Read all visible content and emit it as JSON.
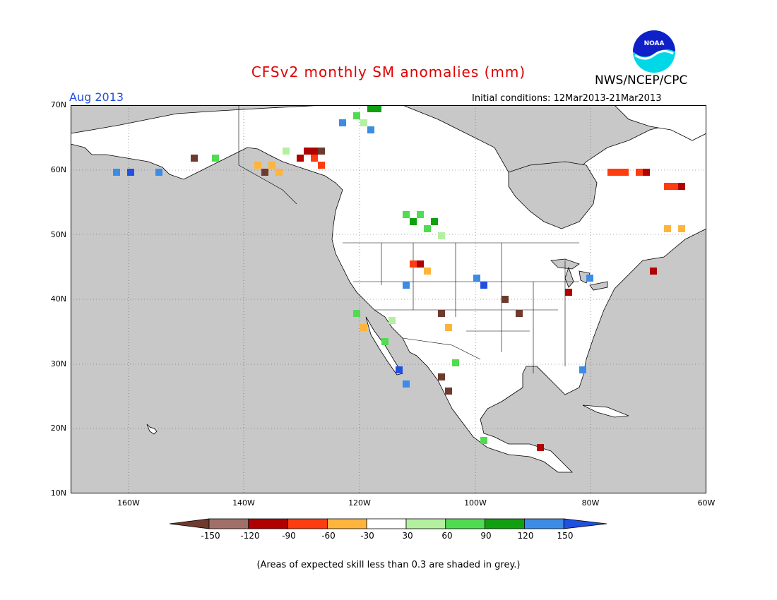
{
  "header": {
    "title": "CFSv2 monthly SM anomalies (mm)",
    "agency": "NWS/NCEP/CPC",
    "logo_text": "NOAA",
    "target_month": "Aug 2013",
    "initial_conditions": "Initial conditions: 12Mar2013-21Mar2013"
  },
  "map": {
    "lat_labels": [
      "70N",
      "60N",
      "50N",
      "40N",
      "30N",
      "20N",
      "10N"
    ],
    "lon_labels": [
      "160W",
      "140W",
      "120W",
      "100W",
      "80W",
      "60W"
    ],
    "grey_color": "#c8c8c8",
    "land_color": "#ffffff"
  },
  "colorbar": {
    "ticks": [
      "-150",
      "-120",
      "-90",
      "-60",
      "-30",
      "30",
      "60",
      "90",
      "120",
      "150"
    ],
    "colors": [
      "#6e3a2e",
      "#a07068",
      "#b00000",
      "#ff3c10",
      "#ffb43c",
      "#ffffff",
      "#b4f0a0",
      "#50dc50",
      "#10a010",
      "#3c8ce6",
      "#2050e0"
    ]
  },
  "footnote": "(Areas of expected skill less than 0.3 are shaded in grey.)"
}
